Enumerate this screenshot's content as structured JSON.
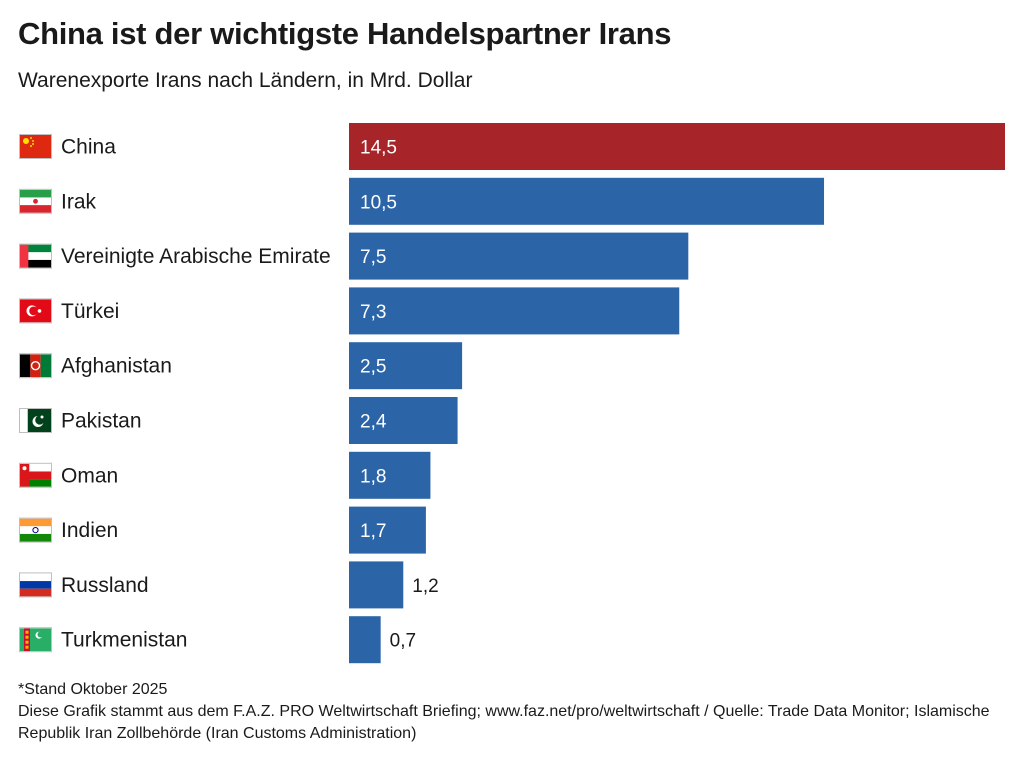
{
  "header": {
    "title": "China ist der wichtigste Handelspartner Irans",
    "subtitle": "Warenexporte Irans nach Ländern, in Mrd. Dollar"
  },
  "chart_data": {
    "type": "bar",
    "orientation": "horizontal",
    "title": "China ist der wichtigste Handelspartner Irans",
    "subtitle": "Warenexporte Irans nach Ländern, in Mrd. Dollar",
    "categories": [
      "China",
      "Irak",
      "Vereinigte Arabische Emirate",
      "Türkei",
      "Afghanistan",
      "Pakistan",
      "Oman",
      "Indien",
      "Russland",
      "Turkmenistan"
    ],
    "values": [
      14.5,
      10.5,
      7.5,
      7.3,
      2.5,
      2.4,
      1.8,
      1.7,
      1.2,
      0.7
    ],
    "value_labels": [
      "14,5",
      "10,5",
      "7,5",
      "7,3",
      "2,5",
      "2,4",
      "1,8",
      "1,7",
      "1,2",
      "0,7"
    ],
    "flag_icons": [
      "china-flag-icon",
      "iraq-flag-icon",
      "uae-flag-icon",
      "turkey-flag-icon",
      "afghanistan-flag-icon",
      "pakistan-flag-icon",
      "oman-flag-icon",
      "india-flag-icon",
      "russia-flag-icon",
      "turkmenistan-flag-icon"
    ],
    "xlim": [
      0,
      14.5
    ],
    "grid": false,
    "legend": "none",
    "colors": {
      "highlight": "#a72428",
      "default": "#2b65a8",
      "label_inside": "#ffffff",
      "label_outside": "#1a1a1a"
    },
    "highlight_index": 0
  },
  "footer": {
    "note": "*Stand Oktober 2025",
    "source": "Diese Grafik stammt aus dem F.A.Z. PRO Weltwirtschaft Briefing; www.faz.net/pro/weltwirtschaft / Quelle: Trade Data Monitor; Islamische Republik Iran Zollbehörde (Iran Customs Administration)"
  }
}
